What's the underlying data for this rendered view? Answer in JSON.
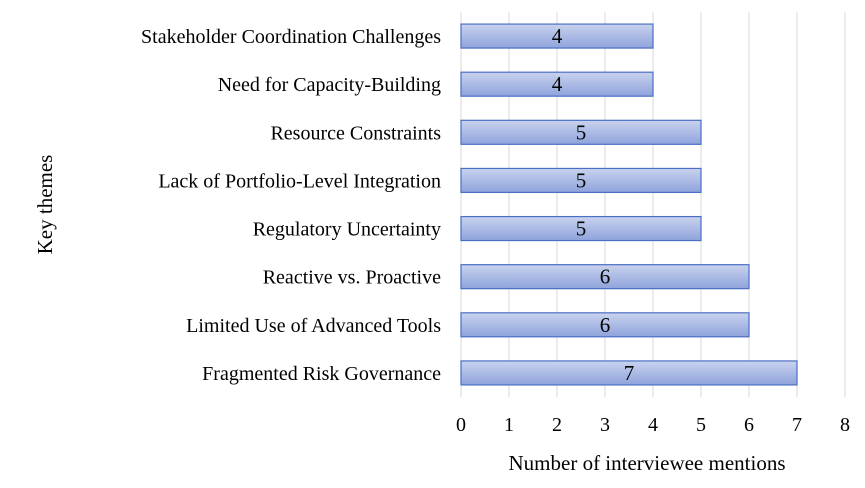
{
  "chart_data": {
    "type": "bar",
    "orientation": "horizontal",
    "categories": [
      "Stakeholder Coordination Challenges",
      "Need for Capacity-Building",
      "Resource Constraints",
      "Lack of Portfolio-Level Integration",
      "Regulatory Uncertainty",
      "Reactive vs. Proactive",
      "Limited Use of Advanced Tools",
      "Fragmented Risk Governance"
    ],
    "values": [
      4,
      4,
      5,
      5,
      5,
      6,
      6,
      7
    ],
    "data_labels": [
      "4",
      "4",
      "5",
      "5",
      "5",
      "6",
      "6",
      "7"
    ],
    "xlabel": "Number of interviewee mentions",
    "ylabel": "Key themes",
    "xlim": [
      0,
      8
    ],
    "x_ticks": [
      "0",
      "1",
      "2",
      "3",
      "4",
      "5",
      "6",
      "7",
      "8"
    ],
    "grid": "vertical",
    "legend": "none",
    "colors": {
      "bar_fill_top": "#c9d3ee",
      "bar_fill_bottom": "#8fa3dc",
      "bar_stroke": "#4a6fc4",
      "grid": "#d9d9d9",
      "text": "#000000"
    }
  }
}
